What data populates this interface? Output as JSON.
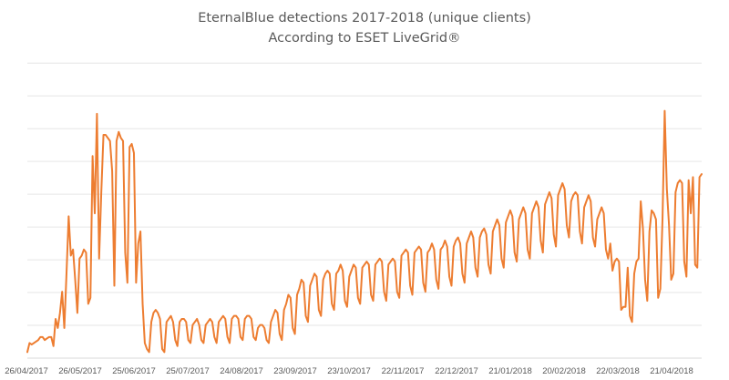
{
  "chart_data": {
    "type": "line",
    "title": "EternalBlue detections 2017-2018 (unique clients)",
    "subtitle": "According to ESET LiveGrid®",
    "xlabel": "",
    "ylabel": "",
    "x_tick_labels": [
      "26/04/2017",
      "26/05/2017",
      "25/06/2017",
      "25/07/2017",
      "24/08/2017",
      "23/09/2017",
      "23/10/2017",
      "22/11/2017",
      "22/12/2017",
      "21/01/2018",
      "20/02/2018",
      "22/03/2018",
      "21/04/2018"
    ],
    "x_range_days": [
      0,
      375
    ],
    "y_range_relative": [
      0,
      10
    ],
    "grid": "horizontal",
    "legend": "none",
    "color": "#ED7D31",
    "series": [
      {
        "values": [
          0.2,
          0.5,
          0.45,
          0.5,
          0.55,
          0.6,
          0.7,
          0.7,
          0.6,
          0.65,
          0.7,
          0.7,
          0.4,
          1.3,
          1.0,
          1.5,
          2.2,
          1.0,
          2.8,
          4.7,
          3.4,
          3.6,
          2.6,
          1.5,
          3.3,
          3.4,
          3.6,
          3.5,
          1.8,
          2.0,
          6.7,
          4.8,
          8.1,
          3.3,
          5.5,
          7.4,
          7.4,
          7.3,
          7.2,
          6.2,
          2.4,
          7.2,
          7.5,
          7.3,
          7.2,
          3.5,
          2.5,
          7.0,
          7.1,
          6.8,
          2.5,
          3.8,
          4.2,
          1.8,
          0.5,
          0.3,
          0.2,
          1.2,
          1.5,
          1.6,
          1.5,
          1.3,
          0.3,
          0.2,
          1.2,
          1.3,
          1.4,
          1.2,
          0.6,
          0.4,
          1.2,
          1.3,
          1.3,
          1.2,
          0.6,
          0.5,
          1.1,
          1.2,
          1.3,
          1.1,
          0.6,
          0.5,
          1.1,
          1.2,
          1.3,
          1.2,
          0.7,
          0.5,
          1.2,
          1.3,
          1.4,
          1.3,
          0.7,
          0.5,
          1.3,
          1.4,
          1.4,
          1.3,
          0.7,
          0.6,
          1.3,
          1.4,
          1.4,
          1.3,
          0.7,
          0.6,
          1.0,
          1.1,
          1.1,
          1.0,
          0.6,
          0.5,
          1.2,
          1.4,
          1.6,
          1.5,
          0.8,
          0.6,
          1.6,
          1.8,
          2.1,
          2.0,
          1.0,
          0.8,
          2.1,
          2.3,
          2.6,
          2.5,
          1.4,
          1.2,
          2.4,
          2.6,
          2.8,
          2.7,
          1.6,
          1.4,
          2.6,
          2.8,
          2.9,
          2.8,
          1.8,
          1.6,
          2.8,
          2.9,
          3.1,
          2.9,
          1.9,
          1.7,
          2.7,
          2.9,
          3.1,
          3.0,
          2.0,
          1.8,
          3.0,
          3.1,
          3.2,
          3.1,
          2.1,
          1.9,
          3.1,
          3.2,
          3.3,
          3.2,
          2.2,
          1.9,
          3.1,
          3.2,
          3.3,
          3.2,
          2.2,
          2.0,
          3.4,
          3.5,
          3.6,
          3.5,
          2.4,
          2.1,
          3.5,
          3.6,
          3.7,
          3.6,
          2.5,
          2.2,
          3.5,
          3.6,
          3.8,
          3.6,
          2.6,
          2.3,
          3.6,
          3.7,
          3.9,
          3.7,
          2.7,
          2.4,
          3.7,
          3.9,
          4.0,
          3.8,
          2.8,
          2.5,
          3.8,
          4.0,
          4.2,
          4.0,
          3.0,
          2.7,
          4.0,
          4.2,
          4.3,
          4.1,
          3.1,
          2.8,
          4.2,
          4.4,
          4.6,
          4.4,
          3.3,
          3.0,
          4.5,
          4.7,
          4.9,
          4.7,
          3.5,
          3.2,
          4.6,
          4.8,
          5.0,
          4.8,
          3.6,
          3.3,
          4.8,
          5.0,
          5.2,
          5.0,
          3.9,
          3.5,
          5.1,
          5.3,
          5.5,
          5.3,
          4.1,
          3.7,
          5.4,
          5.6,
          5.8,
          5.6,
          4.4,
          4.0,
          5.2,
          5.4,
          5.5,
          5.4,
          4.2,
          3.8,
          5.0,
          5.2,
          5.4,
          5.2,
          4.0,
          3.7,
          4.6,
          4.8,
          5.0,
          4.8,
          3.6,
          3.3,
          3.8,
          2.9,
          3.2,
          3.3,
          3.2,
          1.6,
          1.7,
          1.7,
          3.0,
          1.4,
          1.2,
          2.8,
          3.2,
          3.3,
          5.2,
          4.3,
          2.6,
          1.9,
          4.2,
          4.9,
          4.8,
          4.6,
          2.0,
          2.3,
          4.6,
          8.2,
          5.6,
          4.4,
          2.6,
          2.8,
          5.5,
          5.8,
          5.9,
          5.8,
          3.2,
          2.7,
          5.9,
          4.8,
          6.0,
          3.1,
          3.0,
          6.0,
          6.1
        ]
      }
    ]
  }
}
